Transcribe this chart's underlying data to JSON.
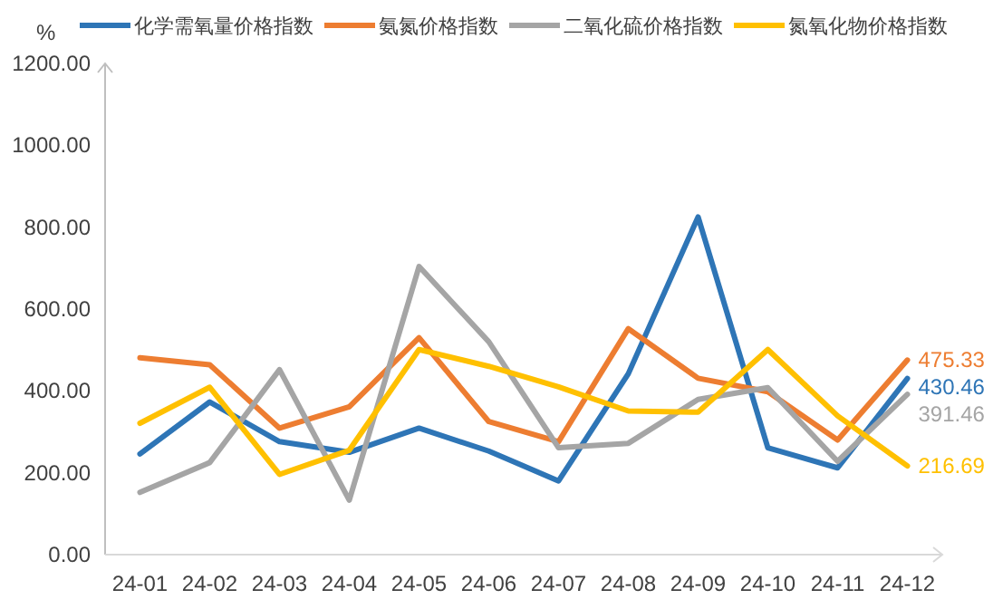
{
  "chart_data": {
    "type": "line",
    "ylabel": "%",
    "categories": [
      "24-01",
      "24-02",
      "24-03",
      "24-04",
      "24-05",
      "24-06",
      "24-07",
      "24-08",
      "24-09",
      "24-10",
      "24-11",
      "24-12"
    ],
    "series": [
      {
        "name": "化学需氧量价格指数",
        "color": "#2e75b6",
        "values": [
          246,
          373,
          276,
          250,
          309,
          253,
          180,
          442,
          825,
          261,
          212,
          430.46
        ],
        "value_labels": [
          null,
          null,
          null,
          null,
          null,
          null,
          null,
          null,
          null,
          null,
          null,
          "430.46"
        ]
      },
      {
        "name": "氨氮价格指数",
        "color": "#ed7d31",
        "values": [
          481,
          464,
          309,
          361,
          530,
          325,
          276,
          552,
          431,
          398,
          280,
          475.33
        ],
        "value_labels": [
          null,
          null,
          null,
          null,
          null,
          null,
          null,
          null,
          null,
          null,
          null,
          "475.33"
        ]
      },
      {
        "name": "二氧化硫价格指数",
        "color": "#a5a5a5",
        "values": [
          152,
          225,
          452,
          133,
          704,
          520,
          261,
          272,
          379,
          408,
          228,
          391.46
        ],
        "value_labels": [
          null,
          null,
          null,
          null,
          null,
          null,
          null,
          null,
          null,
          null,
          null,
          "391.46"
        ]
      },
      {
        "name": "氮氧化物价格指数",
        "color": "#ffc000",
        "values": [
          321,
          409,
          196,
          255,
          501,
          460,
          410,
          351,
          348,
          501,
          339,
          216.69
        ],
        "value_labels": [
          null,
          null,
          null,
          null,
          null,
          null,
          null,
          null,
          null,
          null,
          null,
          "216.69"
        ]
      }
    ],
    "ylim": [
      0,
      1200
    ],
    "yticks": [
      {
        "value": 0,
        "label": "0.00"
      },
      {
        "value": 200,
        "label": "200.00"
      },
      {
        "value": 400,
        "label": "400.00"
      },
      {
        "value": 600,
        "label": "600.00"
      },
      {
        "value": 800,
        "label": "800.00"
      },
      {
        "value": 1000,
        "label": "1000.00"
      },
      {
        "value": 1200,
        "label": "1200.00"
      }
    ],
    "grid": false,
    "legend": "top",
    "marker": "none",
    "line_style": "solid"
  }
}
